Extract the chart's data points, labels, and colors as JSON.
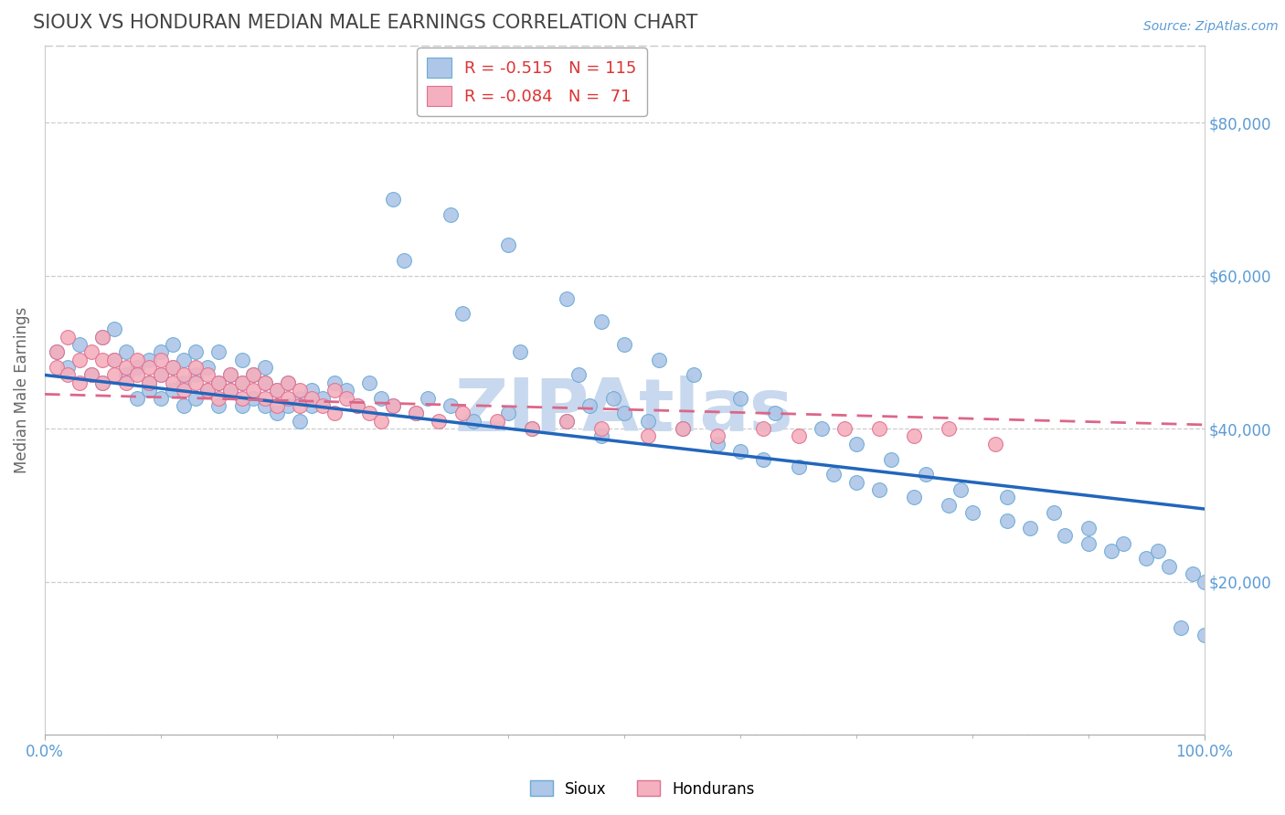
{
  "title": "SIOUX VS HONDURAN MEDIAN MALE EARNINGS CORRELATION CHART",
  "source_text": "Source: ZipAtlas.com",
  "ylabel": "Median Male Earnings",
  "xlim": [
    0,
    100
  ],
  "ylim": [
    0,
    90000
  ],
  "yticks": [
    0,
    20000,
    40000,
    60000,
    80000
  ],
  "ytick_labels": [
    "",
    "$20,000",
    "$40,000",
    "$60,000",
    "$80,000"
  ],
  "sioux_color": "#aec6e8",
  "sioux_edge_color": "#6aaad4",
  "honduran_color": "#f4b0be",
  "honduran_edge_color": "#e07090",
  "sioux_line_color": "#2266bb",
  "honduran_line_color": "#dd6688",
  "title_color": "#444444",
  "axis_label_color": "#666666",
  "tick_label_color": "#5b9bd5",
  "grid_color": "#cccccc",
  "watermark_color": "#c8d8ee",
  "background_color": "#ffffff",
  "sioux_line_intercept": 47000,
  "sioux_line_slope": -175,
  "honduran_line_intercept": 44500,
  "honduran_line_slope": -40,
  "sioux_x": [
    1,
    2,
    3,
    4,
    5,
    5,
    6,
    6,
    7,
    7,
    8,
    8,
    9,
    9,
    9,
    10,
    10,
    10,
    11,
    11,
    11,
    12,
    12,
    12,
    13,
    13,
    13,
    14,
    14,
    15,
    15,
    15,
    16,
    16,
    17,
    17,
    17,
    18,
    18,
    19,
    19,
    19,
    20,
    20,
    21,
    21,
    22,
    22,
    23,
    23,
    24,
    25,
    26,
    27,
    28,
    29,
    30,
    32,
    33,
    35,
    37,
    40,
    42,
    45,
    47,
    48,
    50,
    52,
    55,
    58,
    60,
    62,
    65,
    68,
    70,
    72,
    75,
    78,
    80,
    83,
    85,
    88,
    90,
    92,
    95,
    97,
    99,
    100,
    30,
    35,
    40,
    45,
    48,
    50,
    53,
    56,
    60,
    63,
    67,
    70,
    73,
    76,
    79,
    83,
    87,
    90,
    93,
    96,
    98,
    100,
    31,
    36,
    41,
    46,
    49
  ],
  "sioux_y": [
    50000,
    48000,
    51000,
    47000,
    46000,
    52000,
    49000,
    53000,
    47000,
    50000,
    48000,
    44000,
    45000,
    49000,
    46000,
    50000,
    47000,
    44000,
    48000,
    45000,
    51000,
    46000,
    43000,
    49000,
    47000,
    44000,
    50000,
    45000,
    48000,
    46000,
    43000,
    50000,
    47000,
    45000,
    49000,
    46000,
    43000,
    47000,
    44000,
    46000,
    43000,
    48000,
    45000,
    42000,
    46000,
    43000,
    44000,
    41000,
    45000,
    43000,
    44000,
    46000,
    45000,
    43000,
    46000,
    44000,
    43000,
    42000,
    44000,
    43000,
    41000,
    42000,
    40000,
    41000,
    43000,
    39000,
    42000,
    41000,
    40000,
    38000,
    37000,
    36000,
    35000,
    34000,
    33000,
    32000,
    31000,
    30000,
    29000,
    28000,
    27000,
    26000,
    25000,
    24000,
    23000,
    22000,
    21000,
    20000,
    70000,
    68000,
    64000,
    57000,
    54000,
    51000,
    49000,
    47000,
    44000,
    42000,
    40000,
    38000,
    36000,
    34000,
    32000,
    31000,
    29000,
    27000,
    25000,
    24000,
    14000,
    13000,
    62000,
    55000,
    50000,
    47000,
    44000
  ],
  "honduran_x": [
    1,
    1,
    2,
    2,
    3,
    3,
    4,
    4,
    5,
    5,
    5,
    6,
    6,
    7,
    7,
    8,
    8,
    9,
    9,
    10,
    10,
    11,
    11,
    12,
    12,
    13,
    13,
    14,
    14,
    15,
    15,
    16,
    16,
    17,
    17,
    18,
    18,
    19,
    19,
    20,
    20,
    21,
    21,
    22,
    22,
    23,
    24,
    25,
    25,
    26,
    27,
    28,
    29,
    30,
    32,
    34,
    36,
    39,
    42,
    45,
    48,
    52,
    55,
    58,
    62,
    65,
    69,
    72,
    75,
    78,
    82
  ],
  "honduran_y": [
    50000,
    48000,
    52000,
    47000,
    49000,
    46000,
    50000,
    47000,
    49000,
    46000,
    52000,
    47000,
    49000,
    46000,
    48000,
    47000,
    49000,
    46000,
    48000,
    47000,
    49000,
    46000,
    48000,
    47000,
    45000,
    46000,
    48000,
    45000,
    47000,
    46000,
    44000,
    45000,
    47000,
    46000,
    44000,
    45000,
    47000,
    44000,
    46000,
    45000,
    43000,
    44000,
    46000,
    43000,
    45000,
    44000,
    43000,
    45000,
    42000,
    44000,
    43000,
    42000,
    41000,
    43000,
    42000,
    41000,
    42000,
    41000,
    40000,
    41000,
    40000,
    39000,
    40000,
    39000,
    40000,
    39000,
    40000,
    40000,
    39000,
    40000,
    38000
  ],
  "legend_r_vals": [
    "-0.515",
    "-0.084"
  ],
  "legend_n_vals": [
    "115",
    "71"
  ]
}
